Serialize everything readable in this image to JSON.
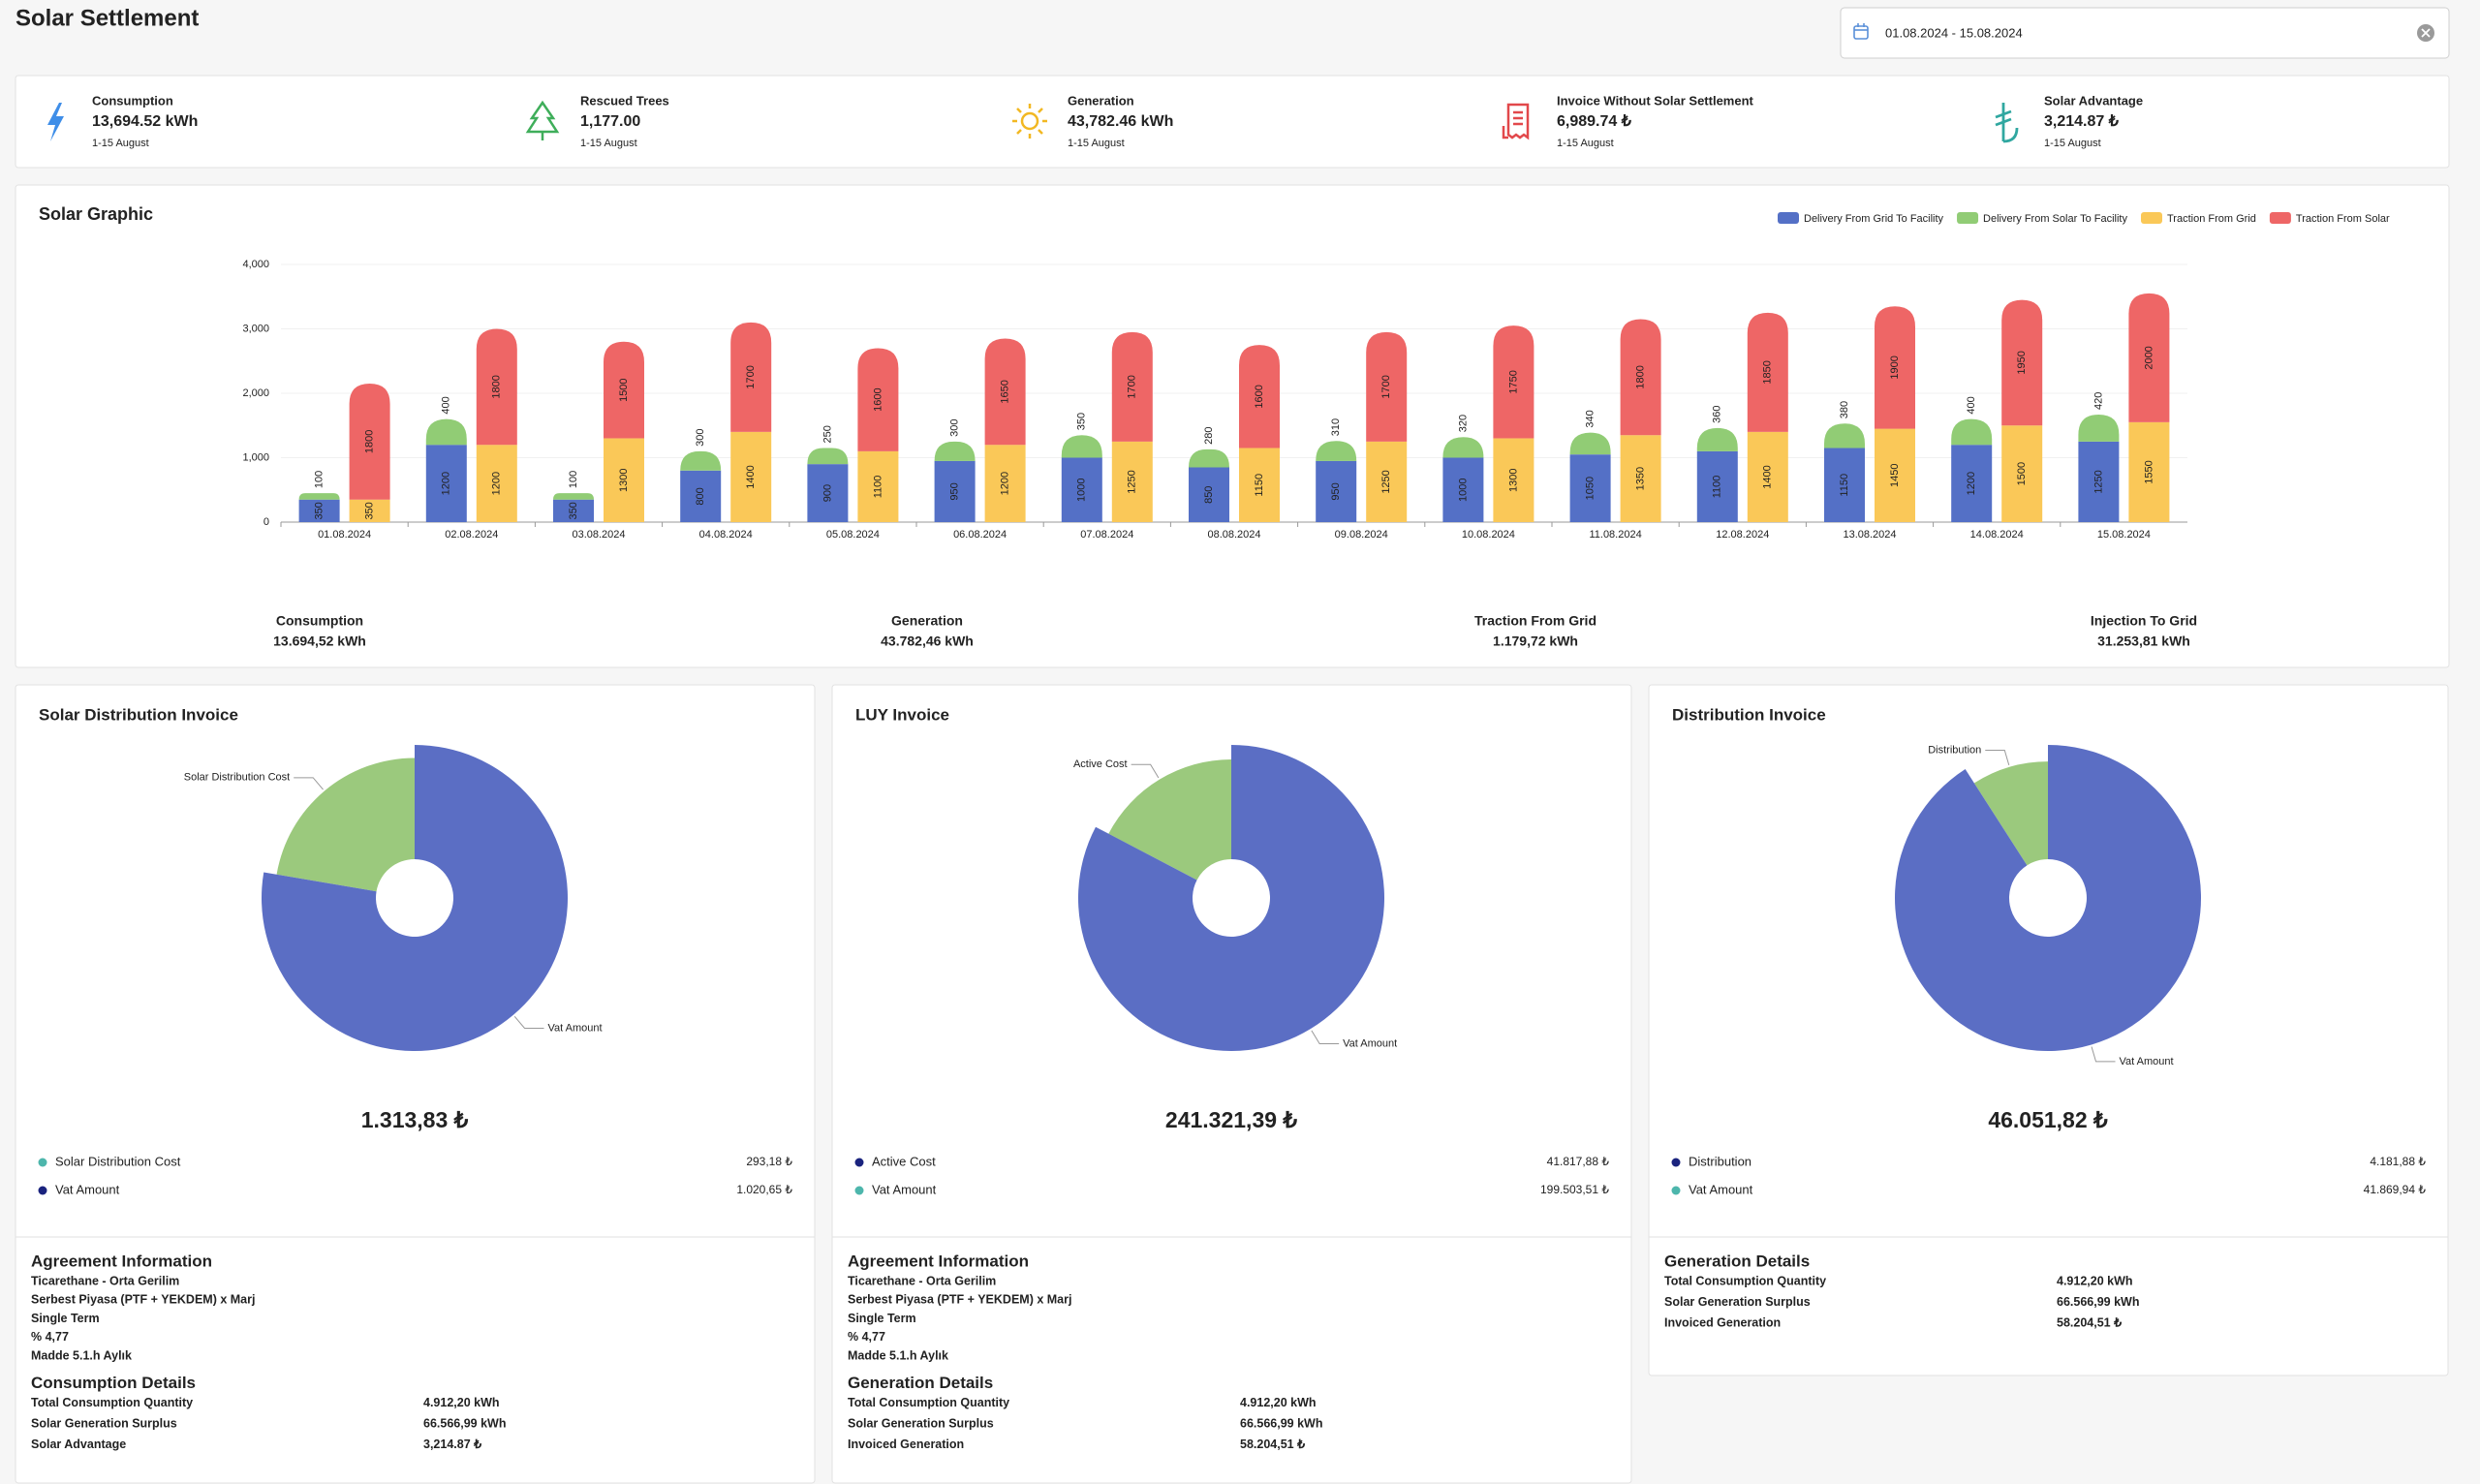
{
  "header": {
    "title": "Solar Settlement",
    "date_range": "01.08.2024 - 15.08.2024"
  },
  "kpis": [
    {
      "label": "Consumption",
      "value": "13,694.52 kWh",
      "period": "1-15 August"
    },
    {
      "label": "Rescued Trees",
      "value": "1,177.00",
      "period": "1-15 August"
    },
    {
      "label": "Generation",
      "value": "43,782.46 kWh",
      "period": "1-15 August"
    },
    {
      "label": "Invoice Without Solar Settlement",
      "value": "6,989.74 ₺",
      "period": "1-15 August"
    },
    {
      "label": "Solar Advantage",
      "value": "3,214.87 ₺",
      "period": "1-15 August"
    }
  ],
  "solar_graphic": {
    "type": "bar",
    "title": "Solar Graphic",
    "legend": "top-right",
    "grid": true,
    "categories": [
      "01.08.2024",
      "02.08.2024",
      "03.08.2024",
      "04.08.2024",
      "05.08.2024",
      "06.08.2024",
      "07.08.2024",
      "08.08.2024",
      "09.08.2024",
      "10.08.2024",
      "11.08.2024",
      "12.08.2024",
      "13.08.2024",
      "14.08.2024",
      "15.08.2024"
    ],
    "series": [
      {
        "name": "Delivery From Grid To Facility",
        "color": "#5470c6",
        "values": [
          350,
          1200,
          350,
          800,
          900,
          950,
          1000,
          850,
          950,
          1000,
          1050,
          1100,
          1150,
          1200,
          1250
        ]
      },
      {
        "name": "Delivery From Solar To Facility",
        "color": "#91cc75",
        "values": [
          100,
          400,
          100,
          300,
          250,
          300,
          350,
          280,
          310,
          320,
          340,
          360,
          380,
          400,
          420
        ]
      },
      {
        "name": "Traction From Grid",
        "color": "#fac858",
        "values": [
          350,
          1200,
          1300,
          1400,
          1100,
          1200,
          1250,
          1150,
          1250,
          1300,
          1350,
          1400,
          1450,
          1500,
          1550
        ]
      },
      {
        "name": "Traction From Solar",
        "color": "#ee6666",
        "values": [
          1800,
          1800,
          1500,
          1700,
          1600,
          1650,
          1700,
          1600,
          1700,
          1750,
          1800,
          1850,
          1900,
          1950,
          2000
        ]
      }
    ],
    "ylim": [
      0,
      4000
    ],
    "yticks": [
      0,
      {
        "value": 1000,
        "label": "1,000"
      },
      {
        "value": 2000,
        "label": "2,000"
      },
      {
        "value": 3000,
        "label": "3,000"
      },
      {
        "value": 4000,
        "label": "4,000"
      }
    ],
    "summary": [
      {
        "label": "Consumption",
        "value": "13.694,52 kWh"
      },
      {
        "label": "Generation",
        "value": "43.782,46 kWh"
      },
      {
        "label": "Traction From Grid",
        "value": "1.179,72 kWh"
      },
      {
        "label": "Injection To Grid",
        "value": "31.253,81 kWh"
      }
    ]
  },
  "invoices": [
    {
      "title": "Solar Distribution Invoice",
      "type": "pie",
      "total": "1.313,83 ₺",
      "items": [
        {
          "name": "Solar Distribution Cost",
          "value": 293.18,
          "value_label": "293,18 ₺",
          "color": "#9bc97d",
          "dot_color": "#4db6ac"
        },
        {
          "name": "Vat Amount",
          "value": 1020.65,
          "value_label": "1.020,65 ₺",
          "color": "#5b6ec4",
          "dot_color": "#1a237e"
        }
      ],
      "sections": [
        {
          "title": "Agreement Information",
          "lines": [
            "Ticarethane - Orta Gerilim",
            "Serbest Piyasa (PTF + YEKDEM) x Marj",
            "Single Term",
            "% 4,77",
            "Madde 5.1.h Aylık"
          ]
        },
        {
          "title": "Consumption Details",
          "rows": [
            {
              "label": "Total Consumption Quantity",
              "value": "4.912,20 kWh"
            },
            {
              "label": "Solar Generation Surplus",
              "value": "66.566,99 kWh"
            },
            {
              "label": "Solar Advantage",
              "value": "3,214.87 ₺"
            }
          ]
        }
      ]
    },
    {
      "title": "LUY Invoice",
      "type": "pie",
      "total": "241.321,39 ₺",
      "items": [
        {
          "name": "Active Cost",
          "value": 41817.88,
          "value_label": "41.817,88 ₺",
          "color": "#9bc97d",
          "dot_color": "#1a237e"
        },
        {
          "name": "Vat Amount",
          "value": 199503.51,
          "value_label": "199.503,51 ₺",
          "color": "#5b6ec4",
          "dot_color": "#4db6ac"
        }
      ],
      "sections": [
        {
          "title": "Agreement Information",
          "lines": [
            "Ticarethane - Orta Gerilim",
            "Serbest Piyasa (PTF + YEKDEM) x Marj",
            "Single Term",
            "% 4,77",
            "Madde 5.1.h Aylık"
          ]
        },
        {
          "title": "Generation Details",
          "rows": [
            {
              "label": "Total Consumption Quantity",
              "value": "4.912,20 kWh"
            },
            {
              "label": "Solar Generation Surplus",
              "value": "66.566,99 kWh"
            },
            {
              "label": "Invoiced Generation",
              "value": "58.204,51 ₺"
            }
          ]
        }
      ]
    },
    {
      "title": "Distribution Invoice",
      "type": "pie",
      "total": "46.051,82 ₺",
      "items": [
        {
          "name": "Distribution",
          "value": 4181.88,
          "value_label": "4.181,88 ₺",
          "color": "#9bc97d",
          "dot_color": "#1a237e"
        },
        {
          "name": "Vat Amount",
          "value": 41869.94,
          "value_label": "41.869,94 ₺",
          "color": "#5b6ec4",
          "dot_color": "#4db6ac"
        }
      ],
      "sections": [
        {
          "title": "Generation Details",
          "rows": [
            {
              "label": "Total Consumption Quantity",
              "value": "4.912,20 kWh"
            },
            {
              "label": "Solar Generation Surplus",
              "value": "66.566,99 kWh"
            },
            {
              "label": "Invoiced Generation",
              "value": "58.204,51 ₺"
            }
          ]
        }
      ]
    }
  ]
}
